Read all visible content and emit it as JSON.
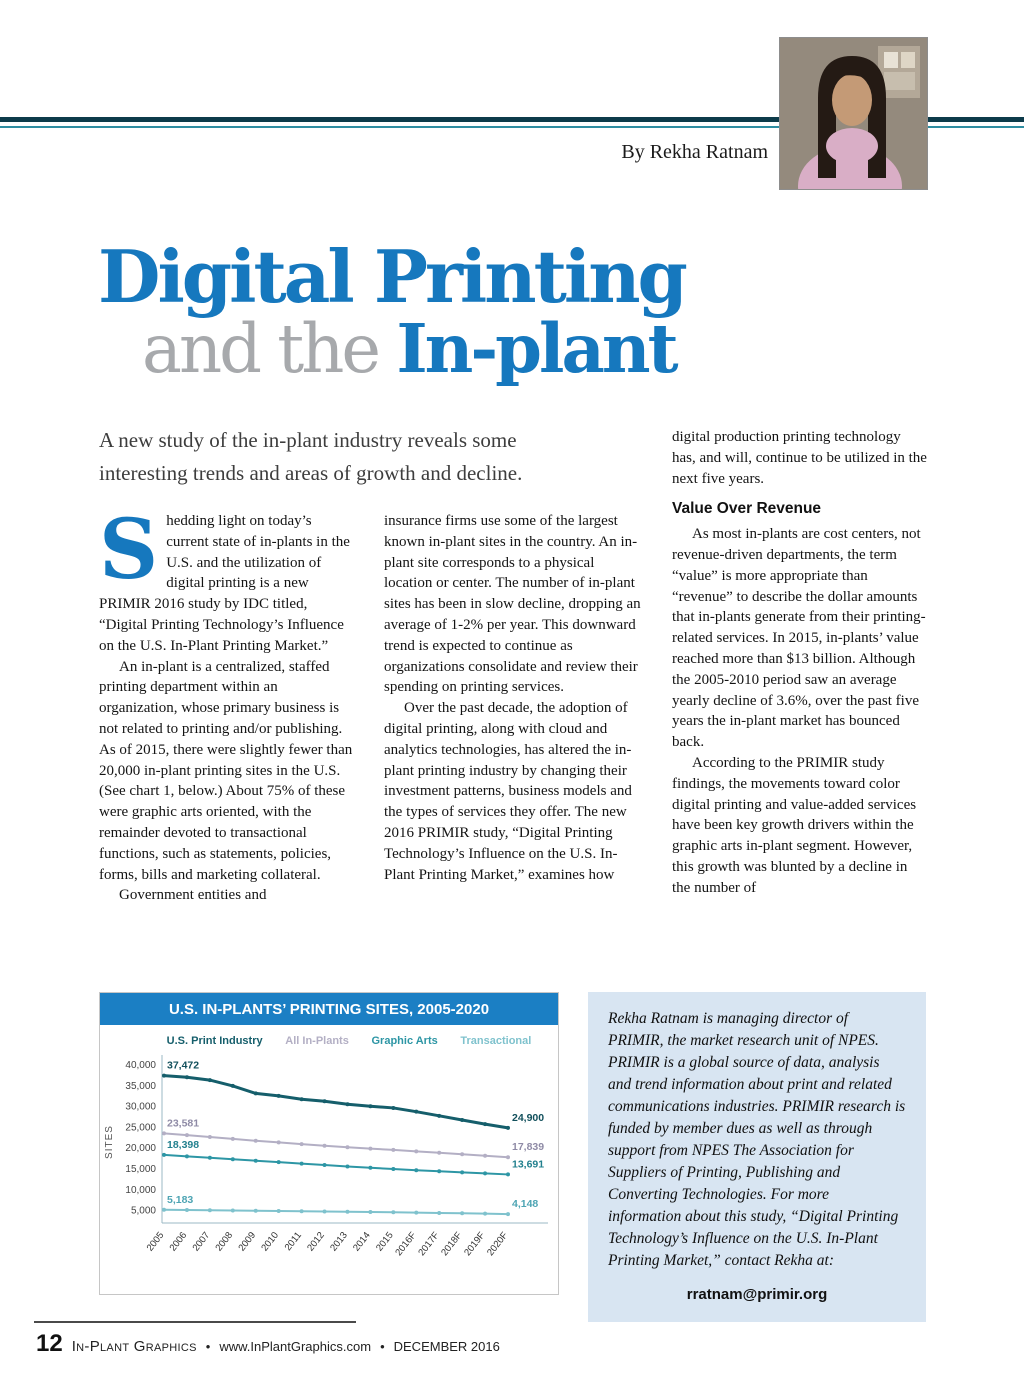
{
  "header": {
    "byline": "By Rekha Ratnam"
  },
  "title": {
    "line1": "Digital Printing",
    "line2_light": "and the ",
    "line2_accent": "In-plant"
  },
  "deck": "A new study of the in-plant industry reveals some interesting trends and areas of growth and decline.",
  "article": {
    "dropcap": "S",
    "col1": [
      "hedding light on today’s current state of in-plants in the U.S. and the utilization of digital printing is a new PRIMIR 2016 study by IDC titled, “Digital Printing Technology’s Influence on the U.S. In-Plant Printing Market.”",
      "An in-plant is a centralized, staffed printing department within an organization, whose primary business is not related to printing and/or publishing. As of 2015, there were slightly fewer than 20,000 in-plant printing sites in the U.S. (See chart 1, below.) About 75% of these were graphic arts oriented, with the remainder devoted to transactional functions, such as statements, policies, forms, bills and marketing collateral.",
      "Government entities and"
    ],
    "col2": [
      "insurance firms use some of the largest known in-plant sites in the country. An in-plant site corresponds to a physical location or center. The number of in-plant sites has been in slow decline, dropping an average of 1-2% per year. This downward trend is expected to continue as organizations consolidate and review their spending on printing services.",
      "Over the past decade, the adoption of digital printing, along with cloud and analytics technologies, has altered the in-plant printing industry by changing their investment patterns, business models and the types of services they offer. The new 2016 PRIMIR study, “Digital Printing Technology’s Influence on the U.S. In-Plant Printing Market,” examines how"
    ],
    "col3": {
      "p1": "digital production printing technology has, and will, continue to be utilized in the next five years.",
      "heading": "Value Over Revenue",
      "p2": "As most in-plants are cost centers, not revenue-driven departments, the term “value” is more appropriate than “revenue” to describe the dollar amounts that in-plants generate from their printing-related services. In 2015, in-plants’ value reached more than $13 billion. Although the 2005-2010 period saw an average yearly decline of 3.6%, over the past five years the in-plant market has bounced back.",
      "p3": "According to the PRIMIR study findings, the movements toward color digital printing and value-added services have been key growth drivers within the graphic arts in-plant segment. However, this growth was blunted by a decline in the number of"
    }
  },
  "chart_data": {
    "type": "line",
    "title": "U.S. IN-PLANTS’ PRINTING SITES, 2005-2020",
    "ylabel": "SITES",
    "xlabel": "",
    "ylim": [
      2000,
      41000
    ],
    "grid": false,
    "legend_position": "top",
    "header_color": "#1b7fc4",
    "yticks": [
      5000,
      10000,
      15000,
      20000,
      25000,
      30000,
      35000,
      40000
    ],
    "ytick_labels": [
      "5,000",
      "10,000",
      "15,000",
      "20,000",
      "25,000",
      "30,000",
      "35,000",
      "40,000"
    ],
    "categories": [
      "2005",
      "2006",
      "2007",
      "2008",
      "2009",
      "2010",
      "2011",
      "2012",
      "2013",
      "2014",
      "2015",
      "2016F",
      "2017F",
      "2018F",
      "2019F",
      "2020F"
    ],
    "series": [
      {
        "name": "U.S. Print Industry",
        "color": "#155e6b",
        "label_color": "#12505c",
        "stroke_width": 3,
        "start_label": "37,472",
        "end_label": "24,900",
        "values": [
          37472,
          37100,
          36400,
          35000,
          33200,
          32600,
          31800,
          31300,
          30600,
          30100,
          29700,
          28800,
          27800,
          26800,
          25800,
          24900
        ]
      },
      {
        "name": "All In-Plants",
        "color": "#b3afc4",
        "label_color": "#8f8ba6",
        "stroke_width": 2,
        "start_label": "23,581",
        "end_label": "17,839",
        "values": [
          23581,
          23150,
          22700,
          22250,
          21800,
          21400,
          21000,
          20600,
          20250,
          19900,
          19600,
          19250,
          18900,
          18550,
          18200,
          17839
        ]
      },
      {
        "name": "Graphic Arts",
        "color": "#2d96a5",
        "label_color": "#22808e",
        "stroke_width": 2,
        "start_label": "18,398",
        "end_label": "13,691",
        "values": [
          18398,
          18050,
          17700,
          17350,
          17000,
          16650,
          16300,
          15950,
          15600,
          15300,
          15000,
          14700,
          14450,
          14200,
          13950,
          13691
        ]
      },
      {
        "name": "Transactional",
        "color": "#7fc2cd",
        "label_color": "#4da4b3",
        "stroke_width": 2,
        "start_label": "5,183",
        "end_label": "4,148",
        "values": [
          5183,
          5120,
          5060,
          5000,
          4940,
          4880,
          4820,
          4760,
          4700,
          4640,
          4580,
          4500,
          4420,
          4340,
          4250,
          4148
        ]
      }
    ]
  },
  "bio": {
    "text": "Rekha Ratnam is managing director of PRIMIR, the market research unit of NPES. PRIMIR is a global source of data, analysis and trend information about print and related communications industries. PRIMIR research is funded by member dues as well as through support from NPES The Association for Suppliers of Printing, Publishing and Converting Technologies. For more information about this study, “Digital Printing Technology’s Influence on the U.S. In-Plant Printing Market,” contact Rekha at:",
    "email": "rratnam@primir.org"
  },
  "footer": {
    "page_number": "12",
    "brand": "In-Plant Graphics",
    "separator": "•",
    "url": "www.InPlantGraphics.com",
    "date": "DECEMBER 2016"
  }
}
